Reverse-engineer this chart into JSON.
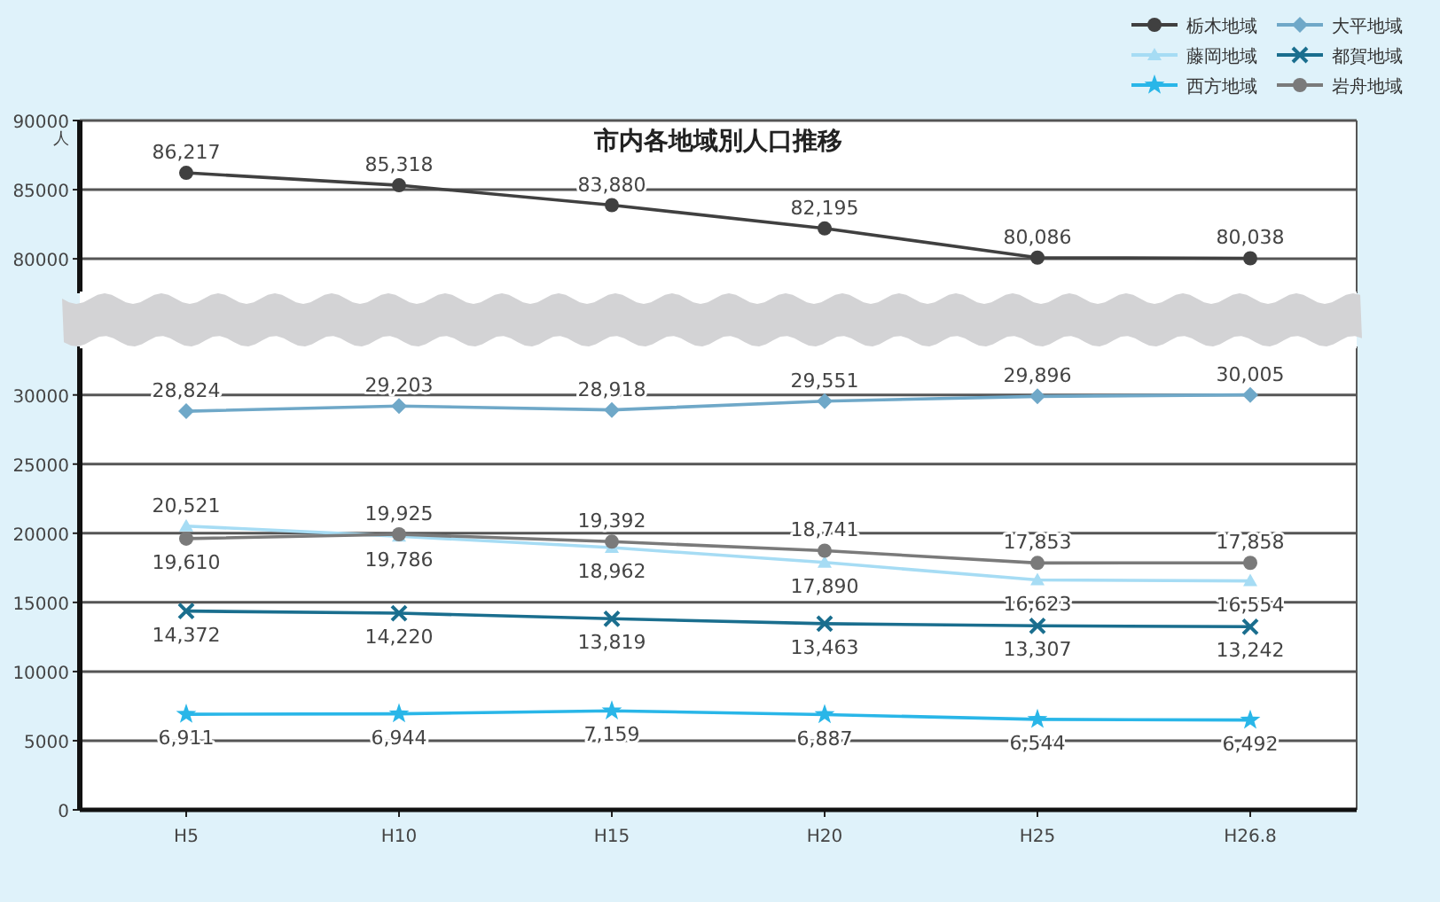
{
  "chart_data": [
    {
      "type": "line",
      "title": "市内各地域別人口推移",
      "ylabel": "人",
      "categories": [
        null,
        null,
        null,
        null,
        null,
        null
      ],
      "ylim": [
        77500,
        90000
      ],
      "yticks": [
        80000,
        85000,
        90000
      ],
      "grid": "y",
      "tick_labels": "y",
      "legend": "top right",
      "series": [
        {
          "name": "栃木地域",
          "color": "#404040",
          "marker": "circle",
          "values": [
            86217,
            85318,
            83880,
            82195,
            80086,
            80038
          ],
          "value_labels": [
            "86,217",
            "85,318",
            "83,880",
            "82,195",
            "80,086",
            "80,038"
          ]
        }
      ]
    },
    {
      "type": "line",
      "categories": [
        "H5",
        "H10",
        "H15",
        "H20",
        "H25",
        "H26.8"
      ],
      "ylim": [
        0,
        33500
      ],
      "yticks": [
        0,
        5000,
        10000,
        15000,
        20000,
        25000,
        30000
      ],
      "grid": "y",
      "legend": "top right",
      "series": [
        {
          "name": "大平地域",
          "color": "#6fa8c8",
          "marker": "diamond",
          "values": [
            28824,
            29203,
            28918,
            29551,
            29896,
            30005
          ],
          "value_labels": [
            "28,824",
            "29,203",
            "28,918",
            "29,551",
            "29,896",
            "30,005"
          ]
        },
        {
          "name": "藤岡地域",
          "color": "#a6dcf4",
          "marker": "triangle",
          "values": [
            20521,
            19786,
            18962,
            17890,
            16623,
            16554
          ],
          "value_labels": [
            "20,521",
            "19,786",
            "18,962",
            "17,890",
            "16,623",
            "16,554"
          ]
        },
        {
          "name": "都賀地域",
          "color": "#1a6e8e",
          "marker": "cross",
          "values": [
            14372,
            14220,
            13819,
            13463,
            13307,
            13242
          ],
          "value_labels": [
            "14,372",
            "14,220",
            "13,819",
            "13,463",
            "13,307",
            "13,242"
          ]
        },
        {
          "name": "西方地域",
          "color": "#29b6e8",
          "marker": "star",
          "values": [
            6911,
            6944,
            7159,
            6887,
            6544,
            6492
          ],
          "value_labels": [
            "6,911",
            "6,944",
            "7,159",
            "6,887",
            "6,544",
            "6,492"
          ]
        },
        {
          "name": "岩舟地域",
          "color": "#7a7a7a",
          "marker": "circle",
          "values": [
            19610,
            19925,
            19392,
            18741,
            17853,
            17858
          ],
          "value_labels": [
            "19,610",
            "19,925",
            "19,392",
            "18,741",
            "17,853",
            "17,858"
          ]
        }
      ]
    }
  ]
}
